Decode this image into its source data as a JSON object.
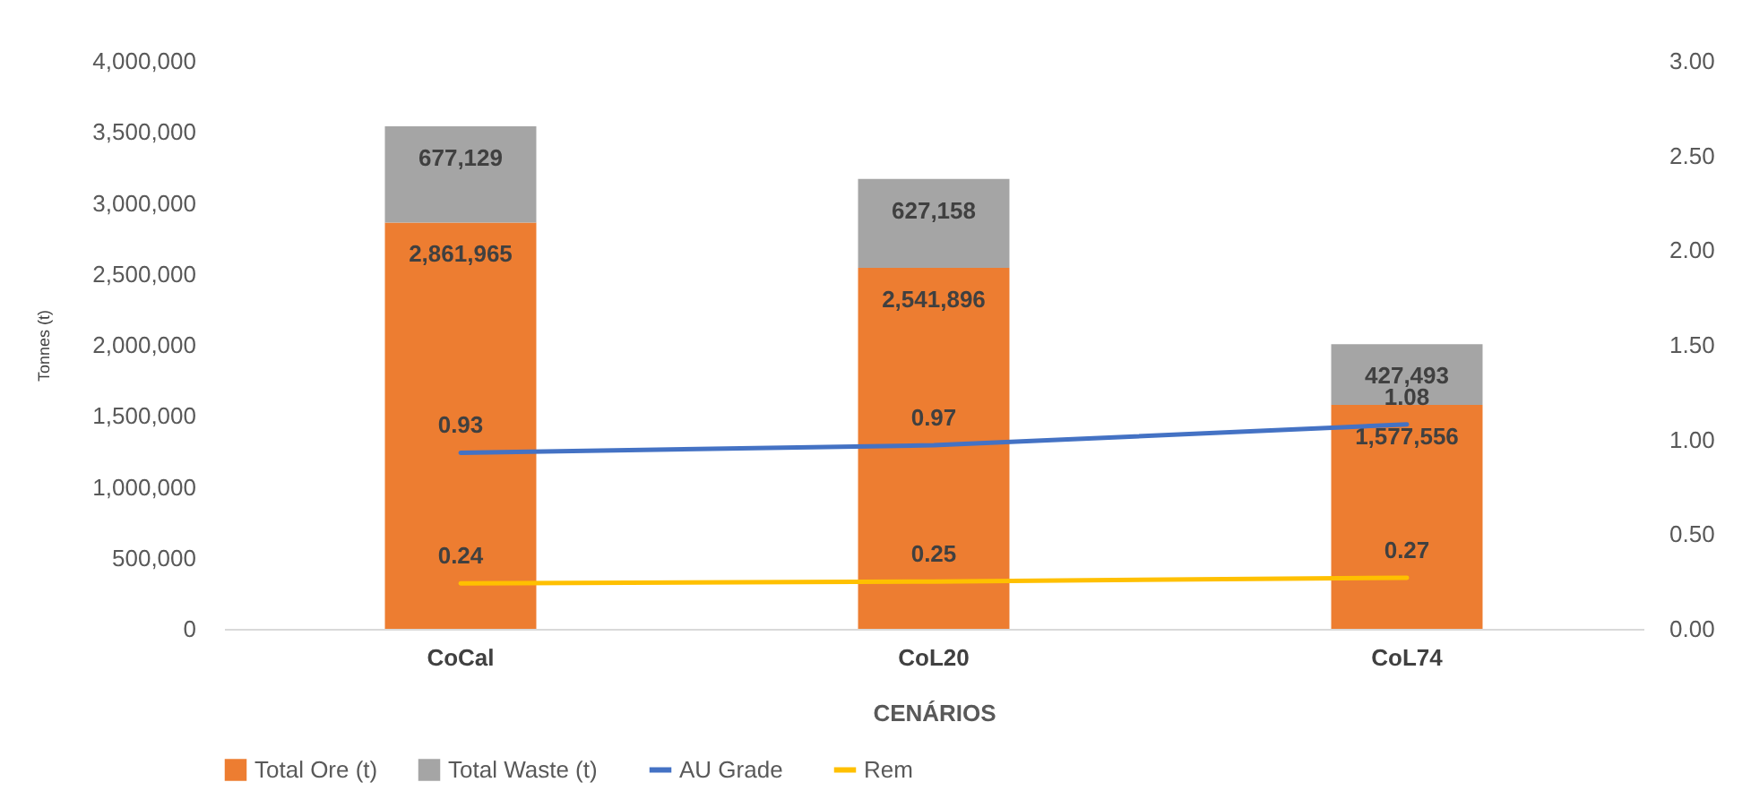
{
  "chart_data": {
    "type": "bar",
    "stacked": true,
    "xlabel": "CENÁRIOS",
    "ylabel": "Tonnes (t)",
    "categories": [
      "CoCal",
      "CoL20",
      "CoL74"
    ],
    "ylim": [
      0,
      4000000
    ],
    "yticks": [
      {
        "value": 0,
        "label": "0"
      },
      {
        "value": 500000,
        "label": "500,000"
      },
      {
        "value": 1000000,
        "label": "1,000,000"
      },
      {
        "value": 1500000,
        "label": "1,500,000"
      },
      {
        "value": 2000000,
        "label": "2,000,000"
      },
      {
        "value": 2500000,
        "label": "2,500,000"
      },
      {
        "value": 3000000,
        "label": "3,000,000"
      },
      {
        "value": 3500000,
        "label": "3,500,000"
      },
      {
        "value": 4000000,
        "label": "4,000,000"
      }
    ],
    "y2lim": [
      0,
      3
    ],
    "y2ticks": [
      {
        "value": 0,
        "label": "0.00"
      },
      {
        "value": 0.5,
        "label": "0.50"
      },
      {
        "value": 1,
        "label": "1.00"
      },
      {
        "value": 1.5,
        "label": "1.50"
      },
      {
        "value": 2,
        "label": "2.00"
      },
      {
        "value": 2.5,
        "label": "2.50"
      },
      {
        "value": 3,
        "label": "3.00"
      }
    ],
    "legend": "bottom",
    "series": [
      {
        "name": "Total Ore (t)",
        "color": "#ed7d31",
        "values": [
          2861965,
          2541896,
          1577556
        ],
        "value_labels": [
          "2,861,965",
          "2,541,896",
          "1,577,556"
        ]
      },
      {
        "name": "Total Waste (t)",
        "color": "#a5a5a5",
        "values": [
          677129,
          627158,
          427493
        ],
        "value_labels": [
          "677,129",
          "627,158",
          "427,493"
        ]
      },
      {
        "name": "AU Grade",
        "type": "line",
        "axis": "y2",
        "color": "#4472c4",
        "values": [
          0.93,
          0.97,
          1.08
        ],
        "value_labels": [
          "0.93",
          "0.97",
          "1.08"
        ]
      },
      {
        "name": "Rem",
        "type": "line",
        "axis": "y2",
        "color": "#ffc000",
        "values": [
          0.24,
          0.25,
          0.27
        ],
        "value_labels": [
          "0.24",
          "0.25",
          "0.27"
        ]
      }
    ]
  }
}
